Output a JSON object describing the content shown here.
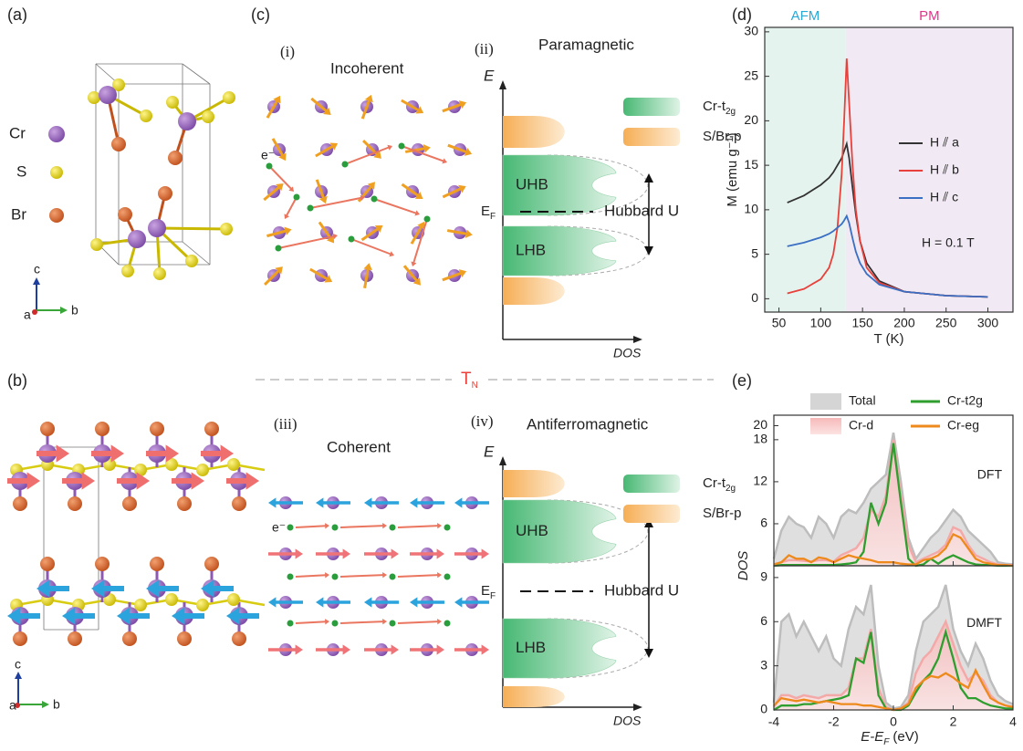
{
  "figure": {
    "panel_a": {
      "label": "(a)",
      "atoms": [
        "Cr",
        "S",
        "Br"
      ],
      "axes": [
        "c",
        "a",
        "b"
      ]
    },
    "panel_b": {
      "label": "(b)",
      "axes": [
        "c",
        "a",
        "b"
      ]
    },
    "panel_c": {
      "label": "(c)",
      "i": {
        "label": "(i)",
        "title": "Incoherent",
        "electron": "e⁻"
      },
      "ii": {
        "label": "(ii)",
        "title": "Paramagnetic",
        "energy": "E",
        "dos": "DOS",
        "legend": [
          {
            "text": "Cr-t",
            "sub": "2g"
          },
          {
            "text": "S/Br-p"
          }
        ],
        "upper": "UHB",
        "lower": "LHB",
        "fermi": {
          "text": "E",
          "sub": "F"
        },
        "gap": "Hubbard U"
      },
      "iii": {
        "label": "(iii)",
        "title": "Coherent",
        "electron": "e⁻"
      },
      "iv": {
        "label": "(iv)",
        "title": "Antiferromagnetic",
        "energy": "E",
        "dos": "DOS",
        "legend": [
          {
            "text": "Cr-t",
            "sub": "2g"
          },
          {
            "text": "S/Br-p"
          }
        ],
        "upper": "UHB",
        "lower": "LHB",
        "fermi": {
          "text": "E",
          "sub": "F"
        },
        "gap": "Hubbard U"
      }
    },
    "transition": {
      "text": "T",
      "sub": "N"
    },
    "panel_d": "(d)",
    "panel_e": "(e)"
  },
  "chart_data": [
    {
      "type": "line",
      "xlabel": "T (K)",
      "ylabel": "M (emu g⁻¹)",
      "annotation": "H = 0.1 T",
      "x": [
        60,
        80,
        100,
        110,
        115,
        120,
        125,
        128,
        131,
        134,
        138,
        142,
        147,
        155,
        170,
        200,
        250,
        300
      ],
      "series": [
        {
          "name": "H ⫽ a",
          "color": "#333333",
          "values": [
            10.8,
            11.6,
            12.8,
            13.6,
            14.2,
            15,
            15.8,
            16.6,
            17.4,
            15.8,
            12.5,
            9.5,
            6.5,
            4,
            2,
            0.8,
            0.35,
            0.2
          ]
        },
        {
          "name": "H ⫽ b",
          "color": "#e8403a",
          "values": [
            0.6,
            1.1,
            2.2,
            3.5,
            5,
            8,
            14,
            20,
            27,
            22,
            15,
            10,
            6.5,
            3.5,
            1.8,
            0.8,
            0.35,
            0.2
          ]
        },
        {
          "name": "H ⫽ c",
          "color": "#3a6fc4",
          "values": [
            5.9,
            6.3,
            6.9,
            7.3,
            7.6,
            8,
            8.4,
            8.8,
            9.3,
            8.5,
            6.8,
            5.3,
            4,
            2.8,
            1.6,
            0.8,
            0.35,
            0.2
          ]
        }
      ],
      "regions": [
        {
          "label": "AFM",
          "xlim": [
            33,
            130
          ],
          "color": "#e5f3ef",
          "label_color": "#2aa9d6"
        },
        {
          "label": "PM",
          "xlim": [
            130,
            330
          ],
          "color": "#f1e9f4",
          "label_color": "#e2338c"
        }
      ],
      "xlim": [
        33,
        330
      ],
      "xticks": [
        50,
        100,
        150,
        200,
        250,
        300
      ],
      "ylim": [
        -1.5,
        30.5
      ],
      "yticks": [
        0,
        5,
        10,
        15,
        20,
        25,
        30
      ],
      "legend": "center-right"
    },
    {
      "type": "area",
      "xlabel": {
        "text": "E-E",
        "sub": "F",
        "unit": "(eV)"
      },
      "ylabel": "DOS",
      "x": [
        -4,
        -3.75,
        -3.5,
        -3.25,
        -3,
        -2.75,
        -2.5,
        -2.25,
        -2,
        -1.75,
        -1.5,
        -1.25,
        -1,
        -0.75,
        -0.5,
        -0.25,
        0,
        0.25,
        0.5,
        0.75,
        1,
        1.25,
        1.5,
        1.75,
        2,
        2.25,
        2.5,
        2.75,
        3,
        3.25,
        3.5,
        3.75,
        4
      ],
      "xlim": [
        -4,
        4
      ],
      "xticks": [
        -4,
        -2,
        0,
        2,
        4
      ],
      "series": [
        {
          "name": "Total",
          "style": "area",
          "color": "#bdbdbd"
        },
        {
          "name": "Cr-d",
          "style": "area",
          "color": "#f4a9a9"
        },
        {
          "name": "Cr-t2g",
          "style": "line",
          "color": "#2e9e2e"
        },
        {
          "name": "Cr-eg",
          "style": "line",
          "color": "#ee8a1c"
        }
      ],
      "panels": [
        {
          "label": "DFT",
          "ylim": [
            0,
            21.5
          ],
          "yticks": [
            6,
            12,
            18,
            20
          ],
          "values": [
            [
              1,
              5,
              7,
              6,
              5.5,
              4,
              7,
              6,
              4,
              7,
              8,
              7.5,
              9,
              11,
              12,
              13,
              19,
              12,
              4,
              1,
              2.5,
              4,
              5,
              6.5,
              8,
              7,
              5,
              4,
              3,
              2,
              0.5,
              0.3,
              0.2
            ],
            [
              0.2,
              0.5,
              0.8,
              0.8,
              0.7,
              0.6,
              0.8,
              0.8,
              0.6,
              1.5,
              2,
              2.5,
              4,
              8,
              7,
              10,
              18,
              10,
              3,
              0.5,
              1,
              1.5,
              2,
              3,
              5.5,
              5,
              3,
              1.5,
              1,
              0.5,
              0.2,
              0.1,
              0.1
            ],
            [
              0,
              0.1,
              0.1,
              0.1,
              0.1,
              0.1,
              0.1,
              0.1,
              0.1,
              0.2,
              0.3,
              0.5,
              2,
              9,
              6,
              9,
              17.5,
              9,
              1,
              0,
              0.2,
              1,
              0.3,
              1,
              1.5,
              1,
              0.5,
              0.2,
              0.1,
              0.1,
              0,
              0,
              0
            ],
            [
              0.2,
              0.5,
              1.5,
              1,
              1,
              0.5,
              1.2,
              1,
              0.5,
              1,
              1.5,
              1.2,
              1,
              0.8,
              0.5,
              0.5,
              0.5,
              0.3,
              0.2,
              0.2,
              0.8,
              1,
              1.5,
              2.5,
              4.5,
              4,
              2.5,
              1,
              0.5,
              0.3,
              0.1,
              0.1,
              0
            ]
          ]
        },
        {
          "label": "DMFT",
          "ylim": [
            0,
            9.8
          ],
          "yticks": [
            0,
            3,
            6,
            9
          ],
          "values": [
            [
              0.5,
              6,
              6.5,
              5,
              6,
              5,
              4,
              5,
              3.5,
              3,
              5.5,
              7,
              6.5,
              8.5,
              3,
              0.5,
              0.1,
              0.2,
              1,
              4,
              6,
              6.5,
              7,
              8.5,
              5.5,
              4,
              3,
              4.5,
              3.5,
              2,
              1,
              0.6,
              0.4
            ],
            [
              0.2,
              1,
              1,
              0.8,
              1,
              0.9,
              0.8,
              1,
              1,
              1,
              1.5,
              3.5,
              3.5,
              5.5,
              1.5,
              0.2,
              0,
              0.1,
              0.5,
              2.5,
              3.5,
              4,
              5,
              6,
              4.5,
              3,
              2,
              2.5,
              2,
              1,
              0.5,
              0.3,
              0.2
            ],
            [
              0,
              0.3,
              0.3,
              0.3,
              0.4,
              0.4,
              0.5,
              0.6,
              0.7,
              0.8,
              1,
              3.5,
              3.2,
              5.3,
              1,
              0.1,
              0,
              0,
              0.3,
              1.2,
              2,
              2.5,
              3.5,
              5.3,
              3.5,
              1.5,
              0.8,
              0.8,
              0.5,
              0.3,
              0.2,
              0.1,
              0.1
            ],
            [
              0.3,
              0.8,
              0.7,
              0.6,
              0.7,
              0.6,
              0.5,
              0.6,
              0.5,
              0.4,
              0.4,
              0.4,
              0.3,
              0.3,
              0.2,
              0.1,
              0,
              0.1,
              0.4,
              1.5,
              2,
              2.3,
              2.2,
              2.5,
              2.2,
              1.8,
              1.5,
              2.7,
              1.7,
              0.8,
              0.5,
              0.3,
              0.2
            ]
          ]
        }
      ]
    }
  ]
}
